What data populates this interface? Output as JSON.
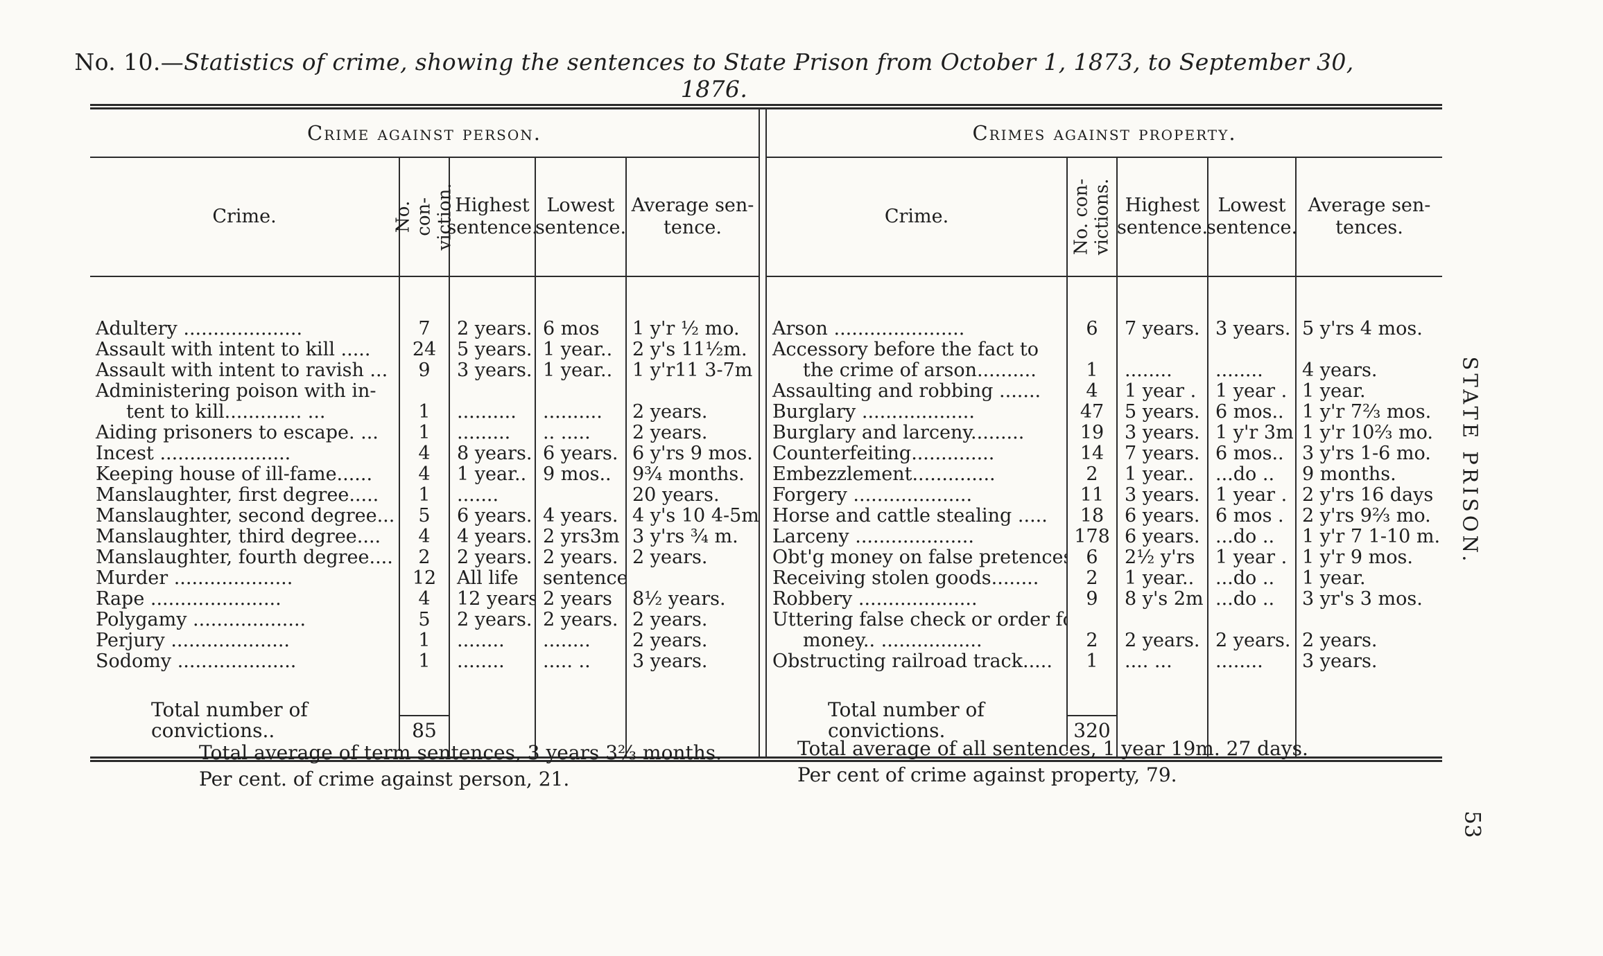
{
  "colors": {
    "paper": "#fbfaf6",
    "ink": "#1e1e1e",
    "rule": "#2b2b2b"
  },
  "title": {
    "prefix": "No. 10.—",
    "text": "Statistics of crime, showing the sentences to State Prison from October 1, 1873, to September 30, 1876."
  },
  "left_table": {
    "section_title": "Crime against person.",
    "headers": {
      "crime": "Crime.",
      "convictions": "No. con-\nviction.",
      "highest": "Highest\nsentence.",
      "lowest": "Lowest\nsentence.",
      "average": "Average sen-\ntence."
    },
    "rows": [
      {
        "crime": "Adultery ....................",
        "n": "7",
        "highest": "2 years.",
        "lowest": "6 mos",
        "average": "1 y'r ½ mo."
      },
      {
        "crime": "Assault with intent to kill .....",
        "n": "24",
        "highest": "5 years.",
        "lowest": "1 year..",
        "average": "2 y's 11½m."
      },
      {
        "crime": "Assault with intent to ravish ...",
        "n": "9",
        "highest": "3 years.",
        "lowest": "1 year..",
        "average": "1 y'r11 3-7m"
      },
      {
        "crime": "Administering poison with in-",
        "crime2": "tent to kill............. ...",
        "n": "1",
        "highest": "..........",
        "lowest": "..........",
        "average": "2 years."
      },
      {
        "crime": "Aiding prisoners to escape. ...",
        "n": "1",
        "highest": ".........",
        "lowest": ".. .....",
        "average": "2 years."
      },
      {
        "crime": "Incest ......................",
        "n": "4",
        "highest": "8 years.",
        "lowest": "6 years.",
        "average": "6 y'rs 9 mos."
      },
      {
        "crime": "Keeping house of ill-fame......",
        "n": "4",
        "highest": "1 year..",
        "lowest": "9 mos..",
        "average": "9¾ months."
      },
      {
        "crime": "Manslaughter, first degree.....",
        "n": "1",
        "highest": ".......",
        "lowest": "",
        "average": "20 years."
      },
      {
        "crime": "Manslaughter, second degree...",
        "n": "5",
        "highest": "6 years.",
        "lowest": "4 years.",
        "average": "4 y's 10 4-5m"
      },
      {
        "crime": "Manslaughter, third degree....",
        "n": "4",
        "highest": "4 years.",
        "lowest": "2 yrs3m",
        "average": "3 y'rs ¾ m."
      },
      {
        "crime": "Manslaughter, fourth degree....",
        "n": "2",
        "highest": "2 years.",
        "lowest": "2 years.",
        "average": "2 years."
      },
      {
        "crime": "Murder ....................",
        "n": "12",
        "highest": "All life",
        "lowest": "sentences",
        "average": ""
      },
      {
        "crime": "Rape ......................",
        "n": "4",
        "highest": "12 years.",
        "lowest": "2 years",
        "average": "8½ years."
      },
      {
        "crime": "Polygamy ...................",
        "n": "5",
        "highest": "2 years.",
        "lowest": "2 years.",
        "average": "2 years."
      },
      {
        "crime": "Perjury ....................",
        "n": "1",
        "highest": "........",
        "lowest": "........",
        "average": "2 years."
      },
      {
        "crime": "Sodomy ....................",
        "n": "1",
        "highest": "........",
        "lowest": "..... ..",
        "average": "3 years."
      }
    ],
    "total": {
      "label": "Total number of convictions..",
      "value": "85"
    }
  },
  "right_table": {
    "section_title": "Crimes against property.",
    "headers": {
      "crime": "Crime.",
      "convictions": "No. con-\nvictions.",
      "highest": "Highest\nsentence.",
      "lowest": "Lowest\nsentence.",
      "average": "Average sen-\ntences."
    },
    "rows": [
      {
        "crime": "Arson ......................",
        "n": "6",
        "highest": "7 years.",
        "lowest": "3 years.",
        "average": "5 y'rs 4 mos."
      },
      {
        "crime": "Accessory before the fact to",
        "crime2": "the crime of arson..........",
        "n": "1",
        "highest": "........",
        "lowest": "........",
        "average": "4 years."
      },
      {
        "crime": "Assaulting and robbing .......",
        "n": "4",
        "highest": "1 year .",
        "lowest": "1 year .",
        "average": "1 year."
      },
      {
        "crime": "Burglary ...................",
        "n": "47",
        "highest": "5 years.",
        "lowest": "6 mos..",
        "average": "1 y'r 7⅔ mos."
      },
      {
        "crime": "Burglary and larceny.........",
        "n": "19",
        "highest": "3 years.",
        "lowest": "1 y'r 3m",
        "average": "1 y'r 10⅔ mo."
      },
      {
        "crime": "Counterfeiting..............",
        "n": "14",
        "highest": "7 years.",
        "lowest": "6 mos..",
        "average": "3 y'rs 1-6 mo."
      },
      {
        "crime": "Embezzlement..............",
        "n": "2",
        "highest": "1 year..",
        "lowest": "...do ..",
        "average": "9 months."
      },
      {
        "crime": "Forgery ....................",
        "n": "11",
        "highest": "3 years.",
        "lowest": "1 year .",
        "average": "2 y'rs 16 days"
      },
      {
        "crime": "Horse and cattle stealing .....",
        "n": "18",
        "highest": "6 years.",
        "lowest": "6 mos .",
        "average": "2 y'rs 9⅔ mo."
      },
      {
        "crime": "Larceny ....................",
        "n": "178",
        "highest": "6 years.",
        "lowest": "...do ..",
        "average": "1 y'r 7 1-10 m."
      },
      {
        "crime": "Obt'g money on false pretences.",
        "n": "6",
        "highest": "2½ y'rs",
        "lowest": "1 year .",
        "average": "1 y'r 9 mos."
      },
      {
        "crime": "Receiving stolen goods........",
        "n": "2",
        "highest": "1 year..",
        "lowest": "...do ..",
        "average": "1 year."
      },
      {
        "crime": "Robbery ....................",
        "n": "9",
        "highest": "8 y's 2m",
        "lowest": "...do ..",
        "average": "3 yr's 3 mos."
      },
      {
        "crime": "Uttering false check or order for",
        "crime2": "money.. .................",
        "n": "2",
        "highest": "2 years.",
        "lowest": "2 years.",
        "average": "2 years."
      },
      {
        "crime": "Obstructing railroad track.....",
        "n": "1",
        "highest": ".... ...",
        "lowest": "........",
        "average": "3 years."
      }
    ],
    "total": {
      "label": "Total number of convictions.",
      "value": "320"
    }
  },
  "footer": {
    "left": [
      "Total average of term sentences, 3 years 3⅔ months.",
      "Per cent. of crime against person, 21."
    ],
    "right": [
      "Total average of all sentences, 1 year 19m. 27 days.",
      "Per cent of crime against property, 79."
    ]
  },
  "margin": {
    "side_label": "STATE PRISON.",
    "page_number": "53"
  }
}
